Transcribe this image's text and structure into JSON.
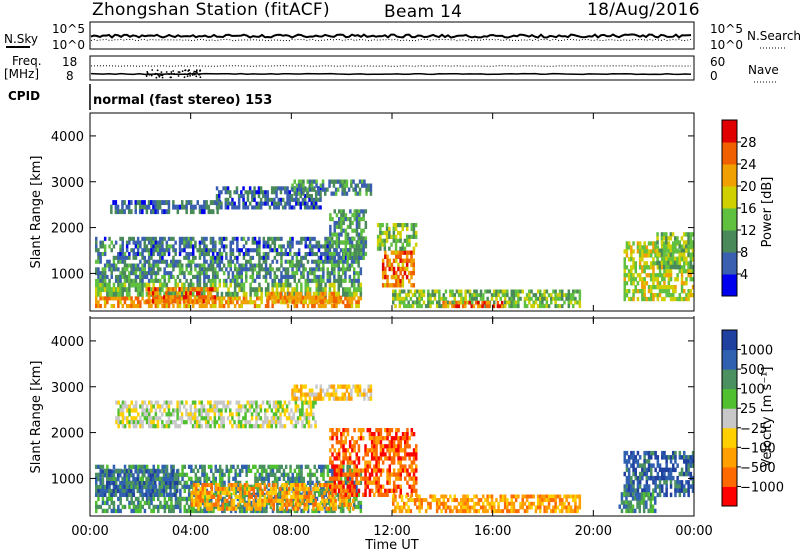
{
  "header": {
    "station": "Zhongshan Station (fitACF)",
    "beam": "Beam 14",
    "date": "18/Aug/2016"
  },
  "params": {
    "nsky_label": "N.Sky",
    "nsearch_label": "N.Search",
    "nsky_ticks": [
      "10^5",
      "10^0"
    ],
    "freq_label": "Freq.",
    "freq_unit": "[MHz]",
    "freq_ticks": [
      "18",
      "8"
    ],
    "nave_label": "Nave",
    "nave_ticks": [
      "60",
      "0"
    ],
    "cpid_label": "CPID",
    "cpid_value": "normal (fast stereo) 153"
  },
  "colors": {
    "power": [
      "#0000ee",
      "#3a5fb0",
      "#4a8a5a",
      "#60c040",
      "#d0d000",
      "#f0a000",
      "#f06000",
      "#e00000"
    ],
    "velocity": [
      "#ff0000",
      "#ff6a00",
      "#ffa000",
      "#ffd000",
      "#c8c8c8",
      "#50c030",
      "#4a9060",
      "#3060b0",
      "#2040a0"
    ]
  },
  "chart_data": [
    {
      "type": "heatmap",
      "panel": "power",
      "xlabel": "Time UT",
      "ylabel": "Slant Range [km]",
      "colorbar_label": "Power [dB]",
      "x_ticks": [
        "00:00",
        "04:00",
        "08:00",
        "12:00",
        "16:00",
        "20:00",
        "00:00"
      ],
      "y_ticks": [
        "1000",
        "2000",
        "3000",
        "4000"
      ],
      "colorbar_ticks": [
        "4",
        "8",
        "12",
        "16",
        "20",
        "24",
        "28"
      ],
      "xlim_hours": [
        0,
        24
      ],
      "ylim_km": [
        180,
        4500
      ],
      "clim": [
        0,
        32
      ],
      "regions": [
        {
          "t0": 0.2,
          "t1": 10.8,
          "r0": 250,
          "r1": 500,
          "v": 23
        },
        {
          "t0": 0.2,
          "t1": 10.8,
          "r0": 500,
          "r1": 800,
          "v": 13
        },
        {
          "t0": 0.2,
          "t1": 10.8,
          "r0": 800,
          "r1": 1300,
          "v": 10
        },
        {
          "t0": 0.2,
          "t1": 10.8,
          "r0": 1300,
          "r1": 1800,
          "v": 8
        },
        {
          "t0": 2.2,
          "t1": 5.0,
          "r0": 350,
          "r1": 700,
          "v": 25
        },
        {
          "t0": 7.0,
          "t1": 10.0,
          "r0": 350,
          "r1": 600,
          "v": 22
        },
        {
          "t0": 0.8,
          "t1": 5.2,
          "r0": 2300,
          "r1": 2600,
          "v": 7
        },
        {
          "t0": 5.0,
          "t1": 9.2,
          "r0": 2400,
          "r1": 2900,
          "v": 7
        },
        {
          "t0": 8.0,
          "t1": 11.2,
          "r0": 2700,
          "r1": 3050,
          "v": 9
        },
        {
          "t0": 9.5,
          "t1": 11.0,
          "r0": 1300,
          "r1": 2400,
          "v": 11
        },
        {
          "t0": 11.6,
          "t1": 12.9,
          "r0": 700,
          "r1": 1500,
          "v": 24
        },
        {
          "t0": 11.4,
          "t1": 13.0,
          "r0": 1500,
          "r1": 2100,
          "v": 14
        },
        {
          "t0": 12.0,
          "t1": 19.5,
          "r0": 250,
          "r1": 650,
          "v": 14
        },
        {
          "t0": 14.0,
          "t1": 16.5,
          "r0": 250,
          "r1": 400,
          "v": 26
        },
        {
          "t0": 21.2,
          "t1": 24.0,
          "r0": 400,
          "r1": 1700,
          "v": 17
        },
        {
          "t0": 22.5,
          "t1": 24.0,
          "r0": 1100,
          "r1": 1900,
          "v": 14
        }
      ]
    },
    {
      "type": "heatmap",
      "panel": "velocity",
      "xlabel": "Time UT",
      "ylabel": "Slant Range [km]",
      "colorbar_label": "Velocity [m s⁻¹]",
      "x_ticks": [
        "00:00",
        "04:00",
        "08:00",
        "12:00",
        "16:00",
        "20:00",
        "00:00"
      ],
      "y_ticks": [
        "1000",
        "2000",
        "3000",
        "4000"
      ],
      "colorbar_ticks": [
        "1000",
        "500",
        "100",
        "25",
        "-25",
        "-100",
        "-500",
        "-1000"
      ],
      "xlim_hours": [
        0,
        24
      ],
      "ylim_km": [
        180,
        4500
      ],
      "regions": [
        {
          "t0": 0.2,
          "t1": 6.0,
          "r0": 250,
          "r1": 1300,
          "v": 6
        },
        {
          "t0": 6.0,
          "t1": 10.8,
          "r0": 250,
          "r1": 1300,
          "v": 6
        },
        {
          "t0": 4.0,
          "t1": 10.5,
          "r0": 300,
          "r1": 900,
          "v": 2
        },
        {
          "t0": 0.2,
          "t1": 3.5,
          "r0": 600,
          "r1": 1200,
          "v": 7
        },
        {
          "t0": 1.0,
          "t1": 9.0,
          "r0": 2100,
          "r1": 2700,
          "v": 4
        },
        {
          "t0": 8.0,
          "t1": 11.2,
          "r0": 2700,
          "r1": 3050,
          "v": 3
        },
        {
          "t0": 9.5,
          "t1": 13.0,
          "r0": 600,
          "r1": 2100,
          "v": 1
        },
        {
          "t0": 12.0,
          "t1": 19.5,
          "r0": 250,
          "r1": 650,
          "v": 2
        },
        {
          "t0": 21.2,
          "t1": 24.0,
          "r0": 600,
          "r1": 1600,
          "v": 7
        },
        {
          "t0": 21.0,
          "t1": 22.5,
          "r0": 250,
          "r1": 700,
          "v": 6
        }
      ]
    }
  ]
}
